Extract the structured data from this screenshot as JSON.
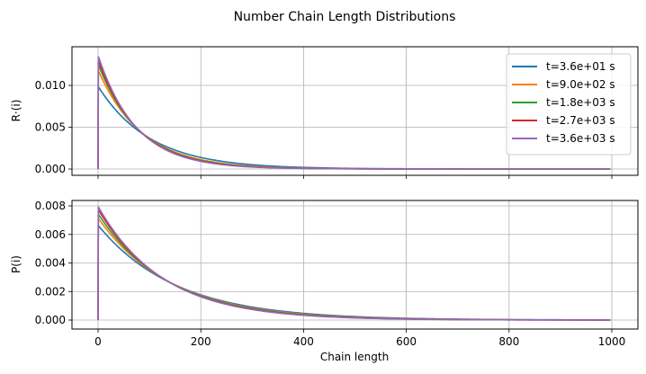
{
  "figure_title": "Number Chain Length Distributions",
  "chart_data": [
    {
      "type": "line",
      "panel": "top",
      "xlabel": "",
      "ylabel": "R·(i)",
      "xlim": [
        0,
        1000
      ],
      "ylim": [
        0,
        0.0135
      ],
      "yticks": [
        0.0,
        0.005,
        0.01
      ],
      "ytick_labels": [
        "0.000",
        "0.005",
        "0.010"
      ],
      "xticks": [
        0,
        200,
        400,
        600,
        800,
        1000
      ],
      "xtick_labels": [
        "",
        "",
        "",
        "",
        "",
        ""
      ],
      "grid": true,
      "legend_placement": "top-right",
      "distribution": "geometric",
      "series": [
        {
          "name": "t=3.6e+01 s",
          "color": "#1f77b4",
          "peak_value": 0.0098
        },
        {
          "name": "t=9.0e+02 s",
          "color": "#ff7f0e",
          "peak_value": 0.0117
        },
        {
          "name": "t=1.8e+03 s",
          "color": "#2ca02c",
          "peak_value": 0.0124
        },
        {
          "name": "t=2.7e+03 s",
          "color": "#d62728",
          "peak_value": 0.0129
        },
        {
          "name": "t=3.6e+03 s",
          "color": "#9467bd",
          "peak_value": 0.0134
        }
      ]
    },
    {
      "type": "line",
      "panel": "bottom",
      "xlabel": "Chain length",
      "ylabel": "P(i)",
      "xlim": [
        0,
        1000
      ],
      "ylim": [
        0,
        0.008
      ],
      "yticks": [
        0.0,
        0.002,
        0.004,
        0.006,
        0.008
      ],
      "ytick_labels": [
        "0.000",
        "0.002",
        "0.004",
        "0.006",
        "0.008"
      ],
      "xticks": [
        0,
        200,
        400,
        600,
        800,
        1000
      ],
      "xtick_labels": [
        "0",
        "200",
        "400",
        "600",
        "800",
        "1000"
      ],
      "grid": true,
      "distribution": "geometric",
      "series": [
        {
          "name": "t=3.6e+01 s",
          "color": "#1f77b4",
          "peak_value": 0.0066
        },
        {
          "name": "t=9.0e+02 s",
          "color": "#ff7f0e",
          "peak_value": 0.0071
        },
        {
          "name": "t=1.8e+03 s",
          "color": "#2ca02c",
          "peak_value": 0.0074
        },
        {
          "name": "t=2.7e+03 s",
          "color": "#d62728",
          "peak_value": 0.0077
        },
        {
          "name": "t=3.6e+03 s",
          "color": "#9467bd",
          "peak_value": 0.0079
        }
      ]
    }
  ]
}
